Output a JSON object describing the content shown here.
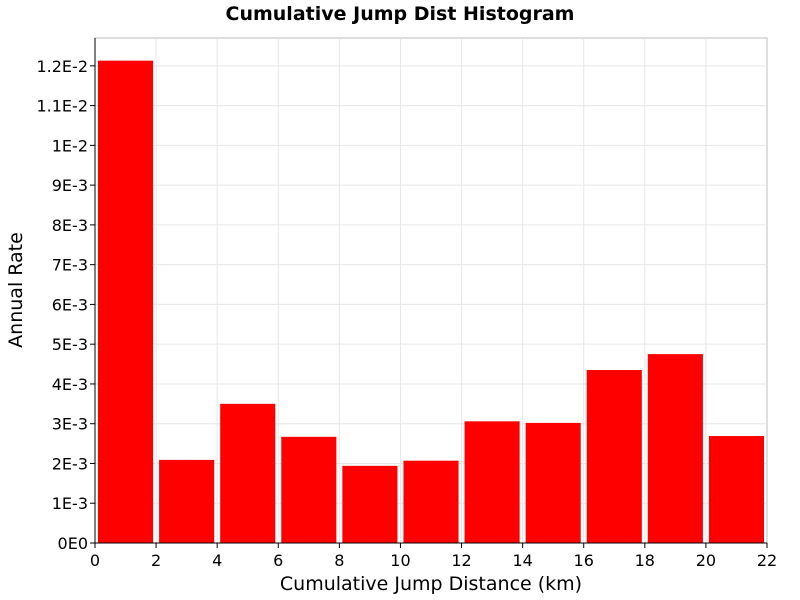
{
  "chart_data": {
    "type": "bar",
    "title": "Cumulative Jump Dist Histogram",
    "xlabel": "Cumulative Jump Distance (km)",
    "ylabel": "Annual Rate",
    "xlim": [
      0,
      22
    ],
    "ylim": [
      0,
      0.0127
    ],
    "x_ticks": [
      0,
      2,
      4,
      6,
      8,
      10,
      12,
      14,
      16,
      18,
      20,
      22
    ],
    "x_tick_labels": [
      "0",
      "2",
      "4",
      "6",
      "8",
      "10",
      "12",
      "14",
      "16",
      "18",
      "20",
      "22"
    ],
    "y_ticks": [
      0,
      0.001,
      0.002,
      0.003,
      0.004,
      0.005,
      0.006,
      0.007,
      0.008,
      0.009,
      0.01,
      0.011,
      0.012
    ],
    "y_tick_labels": [
      "0E0",
      "1E-3",
      "2E-3",
      "3E-3",
      "4E-3",
      "5E-3",
      "6E-3",
      "7E-3",
      "8E-3",
      "9E-3",
      "1E-2",
      "1.1E-2",
      "1.2E-2"
    ],
    "grid": true,
    "bar_color": "#ff0000",
    "series": [
      {
        "bins": [
          {
            "x0": 0,
            "x1": 2,
            "value": 0.01213
          },
          {
            "x0": 2,
            "x1": 4,
            "value": 0.00209
          },
          {
            "x0": 4,
            "x1": 6,
            "value": 0.0035
          },
          {
            "x0": 6,
            "x1": 8,
            "value": 0.00267
          },
          {
            "x0": 8,
            "x1": 10,
            "value": 0.00194
          },
          {
            "x0": 10,
            "x1": 12,
            "value": 0.00207
          },
          {
            "x0": 12,
            "x1": 14,
            "value": 0.00306
          },
          {
            "x0": 14,
            "x1": 16,
            "value": 0.00302
          },
          {
            "x0": 16,
            "x1": 18,
            "value": 0.00435
          },
          {
            "x0": 18,
            "x1": 20,
            "value": 0.00475
          },
          {
            "x0": 20,
            "x1": 22,
            "value": 0.00269
          }
        ]
      }
    ]
  }
}
